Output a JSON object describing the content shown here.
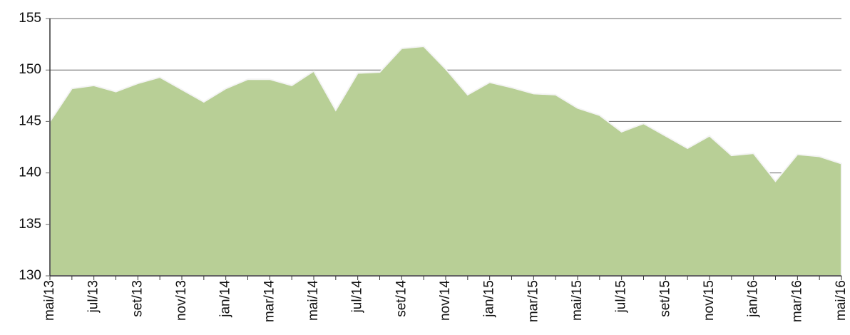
{
  "chart_data": {
    "type": "area",
    "categories": [
      "mai/13",
      null,
      "jul/13",
      null,
      "set/13",
      null,
      "nov/13",
      null,
      "jan/14",
      null,
      "mar/14",
      null,
      "mai/14",
      null,
      "jul/14",
      null,
      "set/14",
      null,
      "nov/14",
      null,
      "jan/15",
      null,
      "mar/15",
      null,
      "mai/15",
      null,
      "jul/15",
      null,
      "set/15",
      null,
      "nov/15",
      null,
      "jan/16",
      null,
      "mar/16",
      null,
      "mai/16"
    ],
    "values": [
      145.0,
      148.2,
      148.5,
      147.9,
      148.7,
      149.3,
      148.1,
      146.9,
      148.2,
      149.1,
      149.1,
      148.5,
      149.9,
      146.1,
      149.7,
      149.8,
      152.1,
      152.3,
      150.1,
      147.6,
      148.8,
      148.3,
      147.7,
      147.6,
      146.3,
      145.6,
      144.0,
      144.8,
      143.6,
      142.4,
      143.6,
      141.7,
      141.9,
      139.2,
      141.8,
      141.6,
      140.9
    ],
    "color": "#b8cf96",
    "ylim": [
      130,
      155
    ],
    "yticks": [
      130,
      135,
      140,
      145,
      150,
      155
    ],
    "grid": true
  }
}
